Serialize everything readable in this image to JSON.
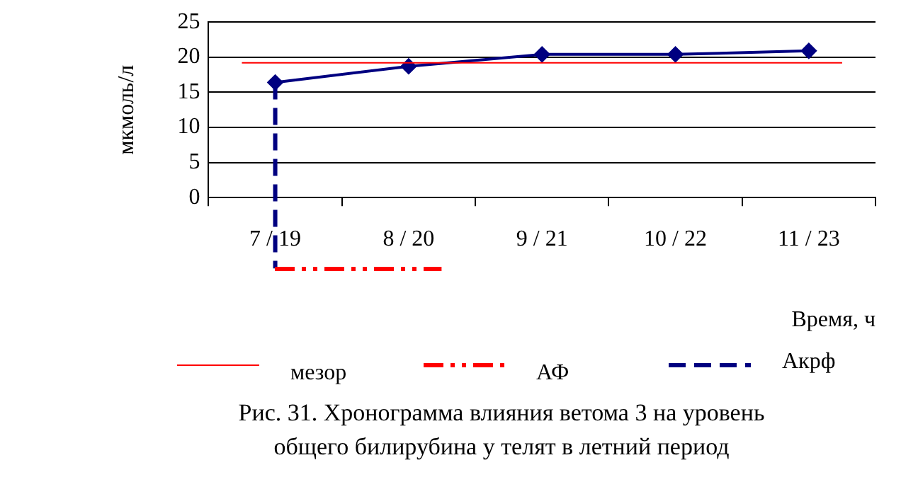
{
  "chart_data": {
    "type": "line",
    "title": "Рис. 31. Хронограмма влияния ветома 3 на уровень\nобщего билирубина у телят в летний период",
    "xlabel": "Время, ч",
    "ylabel": "мкмоль/л",
    "categories": [
      "7 / 19",
      "8 / 20",
      "9 / 21",
      "10 / 22",
      "11 / 23"
    ],
    "series": [
      {
        "color": "#000080",
        "values": [
          16.4,
          18.7,
          20.4,
          20.4,
          20.9
        ]
      }
    ],
    "marker": "diamond",
    "line_style": "solid",
    "ylim": [
      0,
      25
    ],
    "yticks": [
      0,
      5,
      10,
      15,
      20,
      25
    ],
    "grid": "y",
    "legend": "bottom",
    "ref_lines": [
      {
        "axis": "y",
        "value": 19.2,
        "label": "мезор",
        "color": "#ff0000",
        "line_style": "solid"
      },
      {
        "axis": "x",
        "value": "7 / 19",
        "label": "Акрф",
        "color": "#000080",
        "line_style": "dashed"
      }
    ],
    "annotations": [
      "АФ"
    ]
  }
}
